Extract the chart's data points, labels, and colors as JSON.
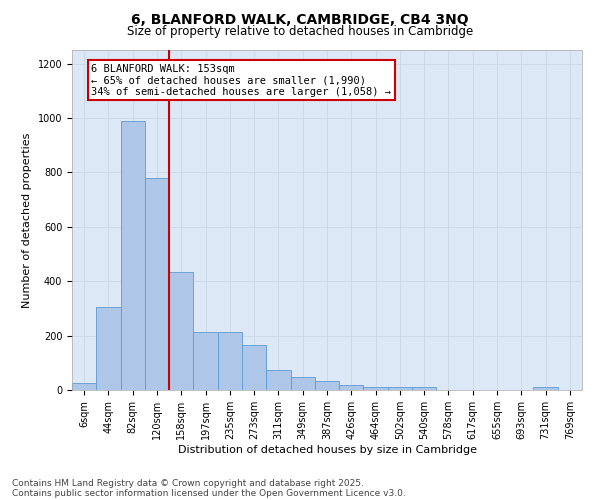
{
  "title_line1": "6, BLANFORD WALK, CAMBRIDGE, CB4 3NQ",
  "title_line2": "Size of property relative to detached houses in Cambridge",
  "xlabel": "Distribution of detached houses by size in Cambridge",
  "ylabel": "Number of detached properties",
  "categories": [
    "6sqm",
    "44sqm",
    "82sqm",
    "120sqm",
    "158sqm",
    "197sqm",
    "235sqm",
    "273sqm",
    "311sqm",
    "349sqm",
    "387sqm",
    "426sqm",
    "464sqm",
    "502sqm",
    "540sqm",
    "578sqm",
    "617sqm",
    "655sqm",
    "693sqm",
    "731sqm",
    "769sqm"
  ],
  "values": [
    25,
    305,
    990,
    780,
    435,
    215,
    215,
    165,
    75,
    48,
    33,
    20,
    12,
    10,
    10,
    0,
    0,
    0,
    0,
    10,
    0
  ],
  "bar_color": "#aec6e8",
  "bar_edge_color": "#5b9bd5",
  "vline_x": 3.5,
  "vline_color": "#cc0000",
  "annotation_text": "6 BLANFORD WALK: 153sqm\n← 65% of detached houses are smaller (1,990)\n34% of semi-detached houses are larger (1,058) →",
  "annotation_box_color": "#cc0000",
  "annotation_bg": "#ffffff",
  "ylim": [
    0,
    1250
  ],
  "yticks": [
    0,
    200,
    400,
    600,
    800,
    1000,
    1200
  ],
  "grid_color": "#c8d8e8",
  "bg_color": "#dce8f5",
  "footnote1": "Contains HM Land Registry data © Crown copyright and database right 2025.",
  "footnote2": "Contains public sector information licensed under the Open Government Licence v3.0.",
  "title_fontsize": 10,
  "subtitle_fontsize": 8.5,
  "axis_label_fontsize": 8,
  "tick_fontsize": 7,
  "annot_fontsize": 7.5,
  "footnote_fontsize": 6.5
}
